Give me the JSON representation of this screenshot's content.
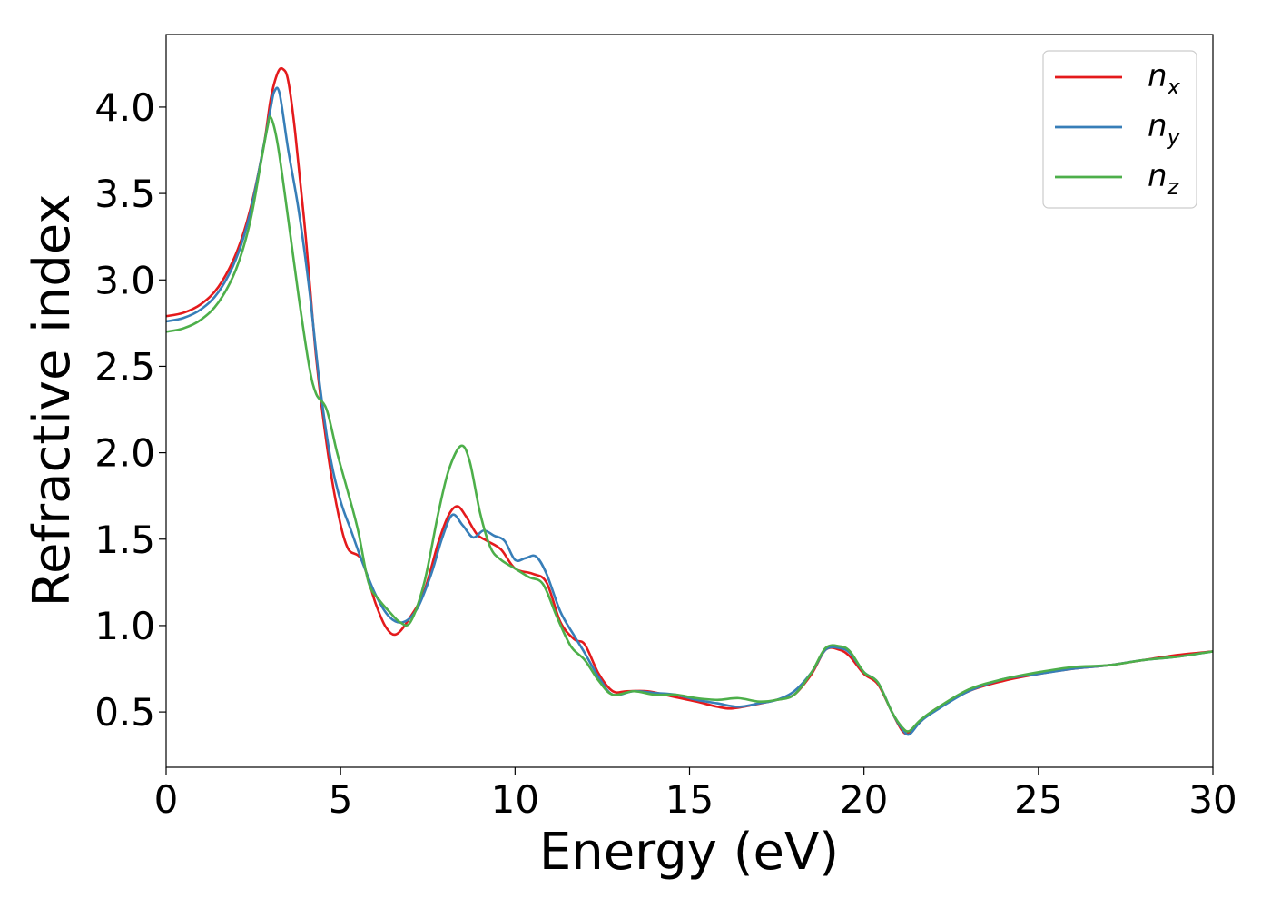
{
  "chart_data": {
    "type": "line",
    "xlabel": "Energy (eV)",
    "ylabel": "Refractive index",
    "xlim": [
      0,
      30
    ],
    "ylim": [
      0.18,
      4.42
    ],
    "x_ticks": [
      0,
      5,
      10,
      15,
      20,
      25,
      30
    ],
    "y_ticks": [
      0.5,
      1.0,
      1.5,
      2.0,
      2.5,
      3.0,
      3.5,
      4.0
    ],
    "x_tick_labels": [
      "0",
      "5",
      "10",
      "15",
      "20",
      "25",
      "30"
    ],
    "y_tick_labels": [
      "0.5",
      "1.0",
      "1.5",
      "2.0",
      "2.5",
      "3.0",
      "3.5",
      "4.0"
    ],
    "grid": false,
    "legend_position": "top-right",
    "series": [
      {
        "name": "n",
        "subscript": "x",
        "color": "#e41a1c",
        "x": [
          0,
          0.5,
          1.0,
          1.5,
          2.0,
          2.4,
          2.8,
          3.0,
          3.2,
          3.35,
          3.5,
          3.7,
          4.0,
          4.3,
          4.6,
          4.9,
          5.2,
          5.6,
          6.0,
          6.3,
          6.6,
          7.0,
          7.4,
          7.8,
          8.1,
          8.35,
          8.6,
          8.9,
          9.2,
          9.6,
          10.0,
          10.5,
          10.9,
          11.3,
          11.7,
          12.0,
          12.4,
          12.8,
          13.2,
          13.8,
          14.5,
          15.2,
          15.8,
          16.2,
          16.8,
          17.5,
          18.0,
          18.5,
          18.9,
          19.3,
          19.6,
          20.0,
          20.4,
          20.8,
          21.1,
          21.3,
          21.6,
          22.0,
          23.0,
          24.0,
          25.0,
          26.0,
          27.0,
          28.0,
          29.0,
          30.0
        ],
        "values": [
          2.79,
          2.81,
          2.86,
          2.96,
          3.15,
          3.4,
          3.78,
          4.05,
          4.2,
          4.22,
          4.15,
          3.85,
          3.25,
          2.55,
          2.05,
          1.68,
          1.45,
          1.38,
          1.13,
          0.99,
          0.95,
          1.05,
          1.2,
          1.48,
          1.64,
          1.69,
          1.63,
          1.53,
          1.49,
          1.44,
          1.33,
          1.3,
          1.25,
          1.02,
          0.92,
          0.89,
          0.72,
          0.62,
          0.62,
          0.62,
          0.59,
          0.56,
          0.53,
          0.52,
          0.54,
          0.57,
          0.6,
          0.72,
          0.86,
          0.86,
          0.82,
          0.72,
          0.66,
          0.5,
          0.39,
          0.38,
          0.44,
          0.51,
          0.62,
          0.68,
          0.72,
          0.75,
          0.77,
          0.8,
          0.83,
          0.85
        ]
      },
      {
        "name": "n",
        "subscript": "y",
        "color": "#377eb8",
        "x": [
          0,
          0.5,
          1.0,
          1.5,
          2.0,
          2.4,
          2.8,
          3.0,
          3.1,
          3.25,
          3.5,
          3.8,
          4.1,
          4.4,
          4.7,
          5.0,
          5.3,
          5.6,
          6.0,
          6.4,
          6.8,
          7.2,
          7.6,
          7.9,
          8.2,
          8.5,
          8.8,
          9.1,
          9.4,
          9.7,
          10.0,
          10.3,
          10.6,
          10.9,
          11.3,
          11.7,
          12.0,
          12.4,
          12.8,
          13.4,
          14.0,
          14.6,
          15.2,
          15.8,
          16.4,
          17.0,
          17.5,
          18.0,
          18.5,
          18.9,
          19.3,
          19.6,
          20.0,
          20.4,
          20.8,
          21.1,
          21.3,
          21.6,
          22.0,
          23.0,
          24.0,
          25.0,
          26.0,
          27.0,
          28.0,
          29.0,
          30.0
        ],
        "values": [
          2.76,
          2.78,
          2.83,
          2.93,
          3.12,
          3.38,
          3.78,
          4.0,
          4.09,
          4.08,
          3.75,
          3.4,
          2.95,
          2.4,
          1.98,
          1.72,
          1.55,
          1.38,
          1.18,
          1.05,
          1.02,
          1.1,
          1.3,
          1.5,
          1.64,
          1.58,
          1.51,
          1.55,
          1.52,
          1.49,
          1.38,
          1.39,
          1.4,
          1.3,
          1.08,
          0.94,
          0.84,
          0.7,
          0.6,
          0.62,
          0.61,
          0.6,
          0.57,
          0.55,
          0.53,
          0.55,
          0.57,
          0.62,
          0.73,
          0.86,
          0.87,
          0.84,
          0.73,
          0.67,
          0.5,
          0.4,
          0.37,
          0.44,
          0.5,
          0.62,
          0.69,
          0.72,
          0.75,
          0.77,
          0.8,
          0.82,
          0.85
        ]
      },
      {
        "name": "n",
        "subscript": "z",
        "color": "#4daf4a",
        "x": [
          0,
          0.5,
          1.0,
          1.5,
          2.0,
          2.4,
          2.7,
          2.9,
          3.0,
          3.2,
          3.5,
          3.8,
          4.1,
          4.3,
          4.6,
          4.9,
          5.2,
          5.5,
          5.8,
          6.1,
          6.4,
          6.7,
          7.0,
          7.4,
          7.8,
          8.1,
          8.45,
          8.7,
          9.0,
          9.3,
          9.6,
          10.0,
          10.4,
          10.8,
          11.2,
          11.6,
          12.0,
          12.4,
          12.8,
          13.4,
          14.0,
          14.6,
          15.2,
          15.8,
          16.4,
          17.0,
          17.5,
          18.0,
          18.5,
          18.9,
          19.3,
          19.6,
          20.0,
          20.4,
          20.8,
          21.1,
          21.3,
          21.6,
          22.0,
          23.0,
          24.0,
          25.0,
          26.0,
          27.0,
          28.0,
          29.0,
          30.0
        ],
        "values": [
          2.7,
          2.72,
          2.77,
          2.87,
          3.06,
          3.33,
          3.66,
          3.88,
          3.94,
          3.78,
          3.35,
          2.9,
          2.5,
          2.34,
          2.25,
          2.0,
          1.78,
          1.55,
          1.25,
          1.15,
          1.08,
          1.02,
          1.02,
          1.25,
          1.65,
          1.9,
          2.04,
          1.95,
          1.65,
          1.45,
          1.38,
          1.33,
          1.28,
          1.24,
          1.05,
          0.88,
          0.8,
          0.68,
          0.6,
          0.62,
          0.6,
          0.6,
          0.58,
          0.57,
          0.58,
          0.56,
          0.57,
          0.6,
          0.73,
          0.87,
          0.88,
          0.85,
          0.73,
          0.67,
          0.5,
          0.41,
          0.39,
          0.45,
          0.51,
          0.63,
          0.69,
          0.73,
          0.76,
          0.77,
          0.8,
          0.82,
          0.85
        ]
      }
    ]
  }
}
